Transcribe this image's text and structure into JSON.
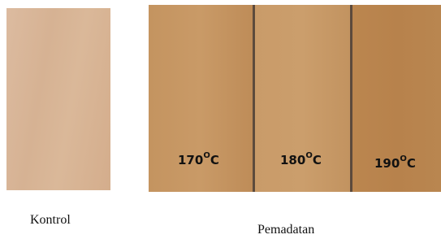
{
  "samples": {
    "control": {
      "caption": "Kontrol"
    },
    "treated": {
      "caption": "Pemadatan",
      "panels": [
        {
          "temp": "170",
          "sup": "O",
          "unit": "C"
        },
        {
          "temp": "180",
          "sup": "O",
          "unit": "C"
        },
        {
          "temp": "190",
          "sup": "O",
          "unit": "C"
        }
      ]
    }
  }
}
